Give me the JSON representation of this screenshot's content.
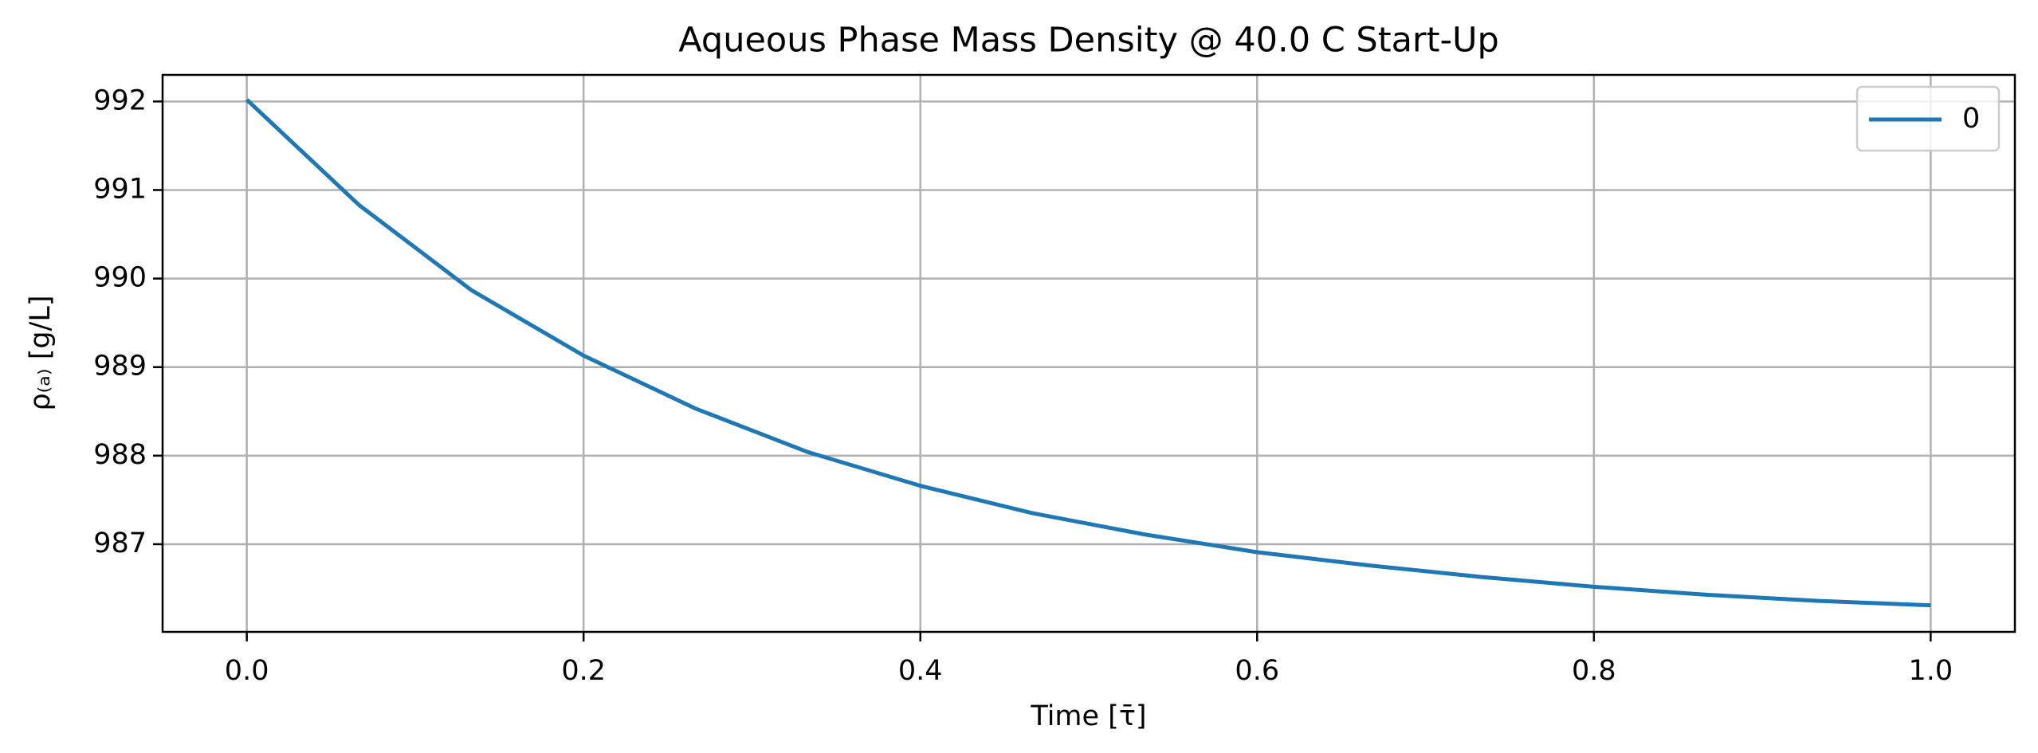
{
  "chart_data": {
    "type": "line",
    "title": "Aqueous Phase Mass Density @ 40.0 C Start-Up",
    "xlabel": "Time [τ̄]",
    "ylabel": "ρ₍ₐ₎ [g/L]",
    "x": [
      0,
      0.0667,
      0.1333,
      0.2,
      0.2667,
      0.3333,
      0.4,
      0.4667,
      0.5333,
      0.6,
      0.6667,
      0.7333,
      0.8,
      0.8667,
      0.9333,
      1
    ],
    "series": [
      {
        "name": "0",
        "color": "#1f77b4",
        "values": [
          992.02,
          990.83,
          989.87,
          989.13,
          988.53,
          988.04,
          987.66,
          987.35,
          987.11,
          986.91,
          986.76,
          986.63,
          986.52,
          986.43,
          986.36,
          986.31
        ]
      }
    ],
    "xlim": [
      -0.05,
      1.05
    ],
    "ylim": [
      986.01,
      992.3
    ],
    "xticks": [
      {
        "value": 0,
        "label": "0.0"
      },
      0.2,
      0.4,
      0.6,
      0.8,
      {
        "value": 1,
        "label": "1.0"
      }
    ],
    "yticks": [
      987,
      988,
      989,
      990,
      991,
      992
    ],
    "grid": true,
    "legend": "upper right"
  }
}
